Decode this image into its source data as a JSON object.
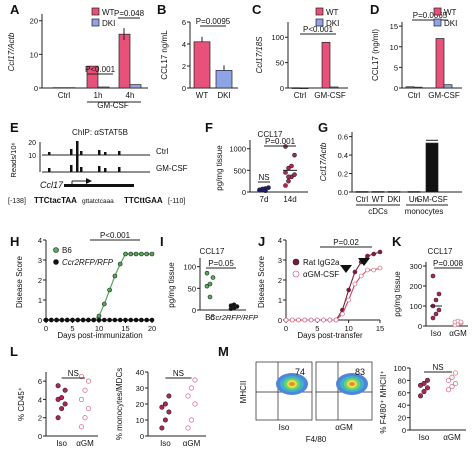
{
  "figure": {
    "A": {
      "label": "A",
      "ylabel": "Ccl17/Actb",
      "yticks": [
        "0",
        "10",
        "20"
      ],
      "legend": [
        "WT",
        "DKI"
      ],
      "groups": [
        "Ctrl",
        "1h",
        "4h"
      ],
      "sublabel": "GM-CSF",
      "p": [
        "P<0.001",
        "P=0.048"
      ]
    },
    "B": {
      "label": "B",
      "ylabel": "CCL17 ng/mL",
      "yticks": [
        "0",
        "2",
        "4",
        "6"
      ],
      "cats": [
        "WT",
        "DKI"
      ],
      "p": "P=0.0095"
    },
    "C": {
      "label": "C",
      "ylabel": "Ccl17/18S",
      "yticks": [
        "0",
        "50",
        "100"
      ],
      "legend": [
        "WT",
        "DKI"
      ],
      "cats": [
        "Ctrl",
        "GM-CSF"
      ],
      "p": "P<0.001"
    },
    "D": {
      "label": "D",
      "ylabel": "CCL17 (ng/ml)",
      "yticks": [
        "0",
        "5",
        "10",
        "15"
      ],
      "legend": [
        "WT",
        "DKI"
      ],
      "cats": [
        "Ctrl",
        "GM-CSF"
      ],
      "p": "P=0.0065"
    },
    "E": {
      "label": "E",
      "title": "ChIP: αSTAT5B",
      "ylabel": "Reads/10⁶",
      "yticks": [
        "0",
        "10",
        "20"
      ],
      "tracks": [
        "Ctrl",
        "GM-CSF"
      ],
      "gene": "Ccl17",
      "seq_l": "[-138]",
      "seq_a": "TTCtacTAA",
      "seq_b": "gttatctcaaa",
      "seq_c": "TTCttGAA",
      "seq_r": "[-110]"
    },
    "F": {
      "label": "F",
      "title": "CCL17",
      "ylabel": "pg/mg tissue",
      "yticks": [
        "0",
        "500",
        "1000"
      ],
      "cats": [
        "7d",
        "14d"
      ],
      "ns": "NS",
      "p": "P=0.001"
    },
    "G": {
      "label": "G",
      "ylabel": "Ccl17/Actb",
      "yticks": [
        "0.0",
        "0.2",
        "0.4",
        "0.6"
      ],
      "cats": [
        "Ctrl",
        "WT",
        "DKI",
        "Un",
        "GM-CSF"
      ],
      "grp1": "cDCs",
      "grp2": "monocytes"
    },
    "H": {
      "label": "H",
      "ylabel": "Disease Score",
      "yticks": [
        "0",
        "1",
        "2",
        "3",
        "4"
      ],
      "xticks": [
        "0",
        "5",
        "10",
        "15",
        "20"
      ],
      "xlabel": "Days post-immunization",
      "legend": [
        "B6",
        "Ccr2RFP/RFP"
      ],
      "p": "P<0.001"
    },
    "I": {
      "label": "I",
      "title": "CCL17",
      "ylabel": "pg/mg tissue",
      "yticks": [
        "0",
        "50",
        "100"
      ],
      "cats": [
        "B6",
        "Ccr2RFP/RFP"
      ],
      "p": "P=0.05"
    },
    "J": {
      "label": "J",
      "ylabel": "Disease Score",
      "yticks": [
        "0",
        "1",
        "2",
        "3",
        "4"
      ],
      "xticks": [
        "0",
        "5",
        "10",
        "15"
      ],
      "xlabel": "Days post-transfer",
      "legend": [
        "Rat IgG2a",
        "αGM-CSF"
      ],
      "p": "P=0.02"
    },
    "K": {
      "label": "K",
      "title": "CCL17",
      "ylabel": "pg/mg tissue",
      "yticks": [
        "0",
        "100",
        "200",
        "300"
      ],
      "cats": [
        "Iso",
        "αGM"
      ],
      "p": "P=0.008"
    },
    "L": {
      "label": "L",
      "ylabel1": "% CD45⁺",
      "yticks1": [
        "0",
        "2",
        "4",
        "6"
      ],
      "ylabel2": "% monocytes/MDCs",
      "yticks2": [
        "0",
        "10",
        "20",
        "30",
        "40"
      ],
      "cats": [
        "Iso",
        "αGM"
      ],
      "ns": "NS"
    },
    "M": {
      "label": "M",
      "ylabel": "MHCII",
      "xlabel": "F4/80",
      "cats": [
        "Iso",
        "αGM"
      ],
      "pct": [
        "74",
        "83"
      ],
      "ylabel2": "% F4/80⁺ MHCII⁺",
      "yticks2": [
        "0",
        "20",
        "40",
        "60",
        "80",
        "100"
      ],
      "ns": "NS"
    }
  },
  "colors": {
    "wt": "#e8517a",
    "dki": "#8fa4e6",
    "green": "#58a95e",
    "black": "#111111",
    "iso": "#b0245c",
    "agm": "#e6a2b6",
    "dark": "#7a1d3c",
    "axis": "#222222"
  },
  "chart_data": [
    {
      "panel": "A",
      "type": "bar",
      "categories": [
        "Ctrl",
        "1h",
        "4h"
      ],
      "series": [
        {
          "name": "WT",
          "values": [
            0.1,
            6.5,
            16
          ]
        },
        {
          "name": "DKI",
          "values": [
            0.1,
            0.3,
            1.0
          ]
        }
      ],
      "ylim": [
        0,
        22
      ],
      "ylabel": "Ccl17/Actb"
    },
    {
      "panel": "B",
      "type": "bar",
      "categories": [
        "WT",
        "DKI"
      ],
      "values": [
        4.2,
        1.6
      ],
      "ylim": [
        0,
        6
      ],
      "ylabel": "CCL17 ng/mL"
    },
    {
      "panel": "C",
      "type": "bar",
      "categories": [
        "Ctrl",
        "GM-CSF"
      ],
      "series": [
        {
          "name": "WT",
          "values": [
            0.5,
            90
          ]
        },
        {
          "name": "DKI",
          "values": [
            0.3,
            2
          ]
        }
      ],
      "ylim": [
        0,
        130
      ],
      "ylabel": "Ccl17/18S"
    },
    {
      "panel": "D",
      "type": "bar",
      "categories": [
        "Ctrl",
        "GM-CSF"
      ],
      "series": [
        {
          "name": "WT",
          "values": [
            0.3,
            12
          ]
        },
        {
          "name": "DKI",
          "values": [
            0.2,
            0.8
          ]
        }
      ],
      "ylim": [
        0,
        16
      ],
      "ylabel": "CCL17 (ng/ml)"
    },
    {
      "panel": "F",
      "type": "scatter",
      "categories": [
        "7d",
        "14d"
      ],
      "series": [
        {
          "name": "7d",
          "values": [
            40,
            60,
            80,
            100,
            50,
            70,
            30
          ]
        },
        {
          "name": "14d",
          "values": [
            150,
            250,
            350,
            400,
            450,
            550,
            600,
            850,
            1050,
            350
          ]
        }
      ],
      "ylim": [
        0,
        1200
      ],
      "ylabel": "pg/mg tissue"
    },
    {
      "panel": "G",
      "type": "bar",
      "categories": [
        "Ctrl",
        "WT",
        "DKI",
        "Un",
        "GM-CSF"
      ],
      "values": [
        0.005,
        0.005,
        0.005,
        0.005,
        0.53
      ],
      "ylim": [
        0,
        0.65
      ],
      "ylabel": "Ccl17/Actb"
    },
    {
      "panel": "H",
      "type": "line",
      "x": [
        0,
        1,
        2,
        3,
        4,
        5,
        6,
        7,
        8,
        9,
        10,
        11,
        12,
        13,
        14,
        15,
        16,
        17,
        18,
        19,
        20
      ],
      "series": [
        {
          "name": "B6",
          "values": [
            0,
            0,
            0,
            0,
            0,
            0,
            0,
            0,
            0,
            0,
            0.2,
            0.8,
            1.5,
            2.2,
            2.8,
            3.3,
            3.3,
            3.3,
            3.3,
            3.3,
            3.3
          ]
        },
        {
          "name": "Ccr2RFP/RFP",
          "values": [
            0,
            0,
            0,
            0,
            0,
            0,
            0,
            0,
            0,
            0,
            0,
            0,
            0,
            0,
            0,
            0,
            0,
            0,
            0,
            0,
            0
          ]
        }
      ],
      "ylim": [
        0,
        4
      ],
      "xlabel": "Days post-immunization",
      "ylabel": "Disease Score"
    },
    {
      "panel": "I",
      "type": "scatter",
      "categories": [
        "B6",
        "Ccr2RFP/RFP"
      ],
      "series": [
        {
          "name": "B6",
          "values": [
            55,
            60,
            75,
            85,
            30
          ]
        },
        {
          "name": "Ccr2RFP/RFP",
          "values": [
            3,
            5,
            8,
            10,
            12
          ]
        }
      ],
      "ylim": [
        0,
        120
      ],
      "ylabel": "pg/mg tissue"
    },
    {
      "panel": "J",
      "type": "line",
      "x": [
        0,
        1,
        2,
        3,
        4,
        5,
        6,
        7,
        8,
        9,
        10,
        11,
        12,
        13,
        14,
        15
      ],
      "series": [
        {
          "name": "Rat IgG2a",
          "values": [
            0,
            0,
            0,
            0,
            0,
            0,
            0,
            0,
            0,
            0.5,
            1.5,
            2.4,
            2.9,
            3.2,
            3.3,
            3.4
          ]
        },
        {
          "name": "αGM-CSF",
          "values": [
            0,
            0,
            0,
            0,
            0,
            0,
            0,
            0,
            0,
            0.3,
            1.0,
            1.8,
            2.2,
            2.5,
            2.5,
            2.6
          ]
        }
      ],
      "ylim": [
        0,
        4
      ],
      "xlabel": "Days post-transfer",
      "ylabel": "Disease Score"
    },
    {
      "panel": "K",
      "type": "scatter",
      "categories": [
        "Iso",
        "αGM"
      ],
      "series": [
        {
          "name": "Iso",
          "values": [
            40,
            60,
            80,
            100,
            130,
            160,
            250
          ]
        },
        {
          "name": "αGM",
          "values": [
            5,
            10,
            15,
            20,
            25,
            20
          ]
        }
      ],
      "ylim": [
        0,
        320
      ],
      "ylabel": "pg/mg tissue"
    },
    {
      "panel": "L1",
      "type": "scatter",
      "categories": [
        "Iso",
        "αGM"
      ],
      "series": [
        {
          "name": "Iso",
          "values": [
            2,
            3,
            3.5,
            4,
            4.2,
            5,
            5.5
          ]
        },
        {
          "name": "αGM",
          "values": [
            1,
            2,
            3,
            4,
            5,
            6,
            6.5
          ]
        }
      ],
      "ylim": [
        0,
        7
      ],
      "ylabel": "% CD45⁺"
    },
    {
      "panel": "L2",
      "type": "scatter",
      "categories": [
        "Iso",
        "αGM"
      ],
      "series": [
        {
          "name": "Iso",
          "values": [
            5,
            10,
            15,
            18,
            20,
            25
          ]
        },
        {
          "name": "αGM",
          "values": [
            5,
            10,
            20,
            25,
            30,
            35
          ]
        }
      ],
      "ylim": [
        0,
        40
      ],
      "ylabel": "% monocytes/MDCs"
    },
    {
      "panel": "M2",
      "type": "scatter",
      "categories": [
        "Iso",
        "αGM"
      ],
      "series": [
        {
          "name": "Iso",
          "values": [
            55,
            62,
            68,
            72,
            75,
            80
          ]
        },
        {
          "name": "αGM",
          "values": [
            65,
            70,
            75,
            80,
            85,
            92
          ]
        }
      ],
      "ylim": [
        0,
        100
      ],
      "ylabel": "% F4/80⁺ MHCII⁺"
    }
  ]
}
